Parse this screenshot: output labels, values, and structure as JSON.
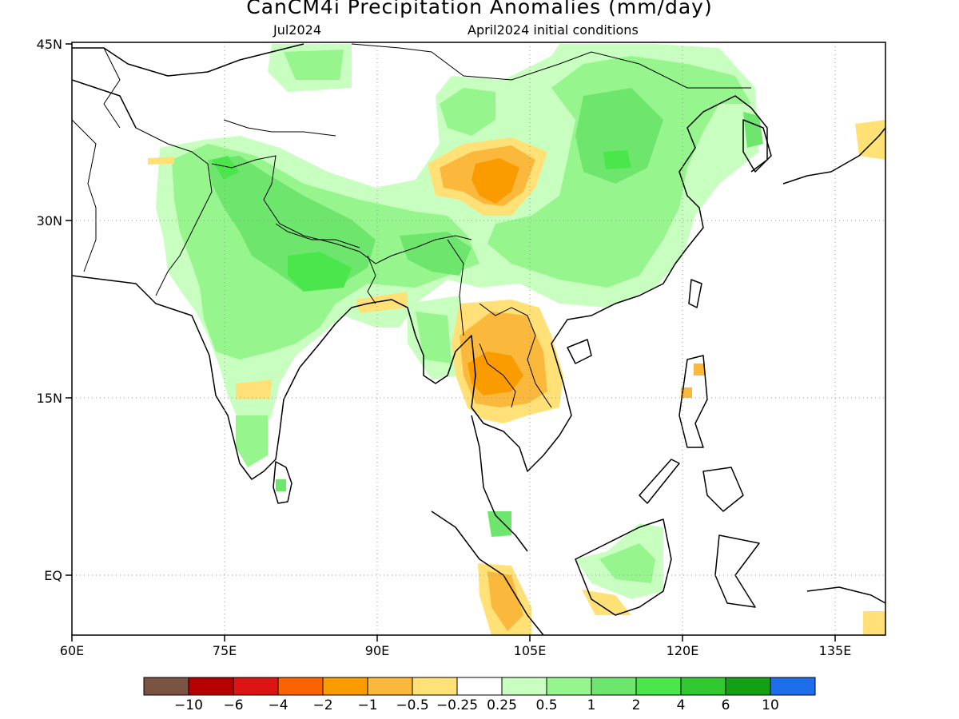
{
  "title": "CanCM4i Precipitation Anomalies (mm/day)",
  "valid_month": "Jul2024",
  "init_conditions": "April2024 initial conditions",
  "map": {
    "lon_range": [
      60,
      140
    ],
    "lat_range": [
      -6,
      45
    ],
    "lon_ticks": [
      {
        "value": 60,
        "label": "60E"
      },
      {
        "value": 75,
        "label": "75E"
      },
      {
        "value": 90,
        "label": "90E"
      },
      {
        "value": 105,
        "label": "105E"
      },
      {
        "value": 120,
        "label": "120E"
      },
      {
        "value": 135,
        "label": "135E"
      }
    ],
    "lat_ticks": [
      {
        "value": 45,
        "label": "45N"
      },
      {
        "value": 30,
        "label": "30N"
      },
      {
        "value": 15,
        "label": "15N"
      },
      {
        "value": 0,
        "label": "EQ"
      }
    ],
    "gridlines": "dotted"
  },
  "colorbar": {
    "colors": [
      "#7b5343",
      "#b40000",
      "#dc1414",
      "#fa6400",
      "#fa9b00",
      "#fab93c",
      "#ffe178",
      "#ffffff",
      "#c8ffc0",
      "#96f58c",
      "#6ee66e",
      "#4be64b",
      "#32c832",
      "#14a014",
      "#1e6eeb"
    ],
    "labels": [
      "−10",
      "−6",
      "−4",
      "−2",
      "−1",
      "−0.5",
      "−0.25",
      "0.25",
      "0.5",
      "1",
      "2",
      "4",
      "6",
      "10"
    ]
  }
}
